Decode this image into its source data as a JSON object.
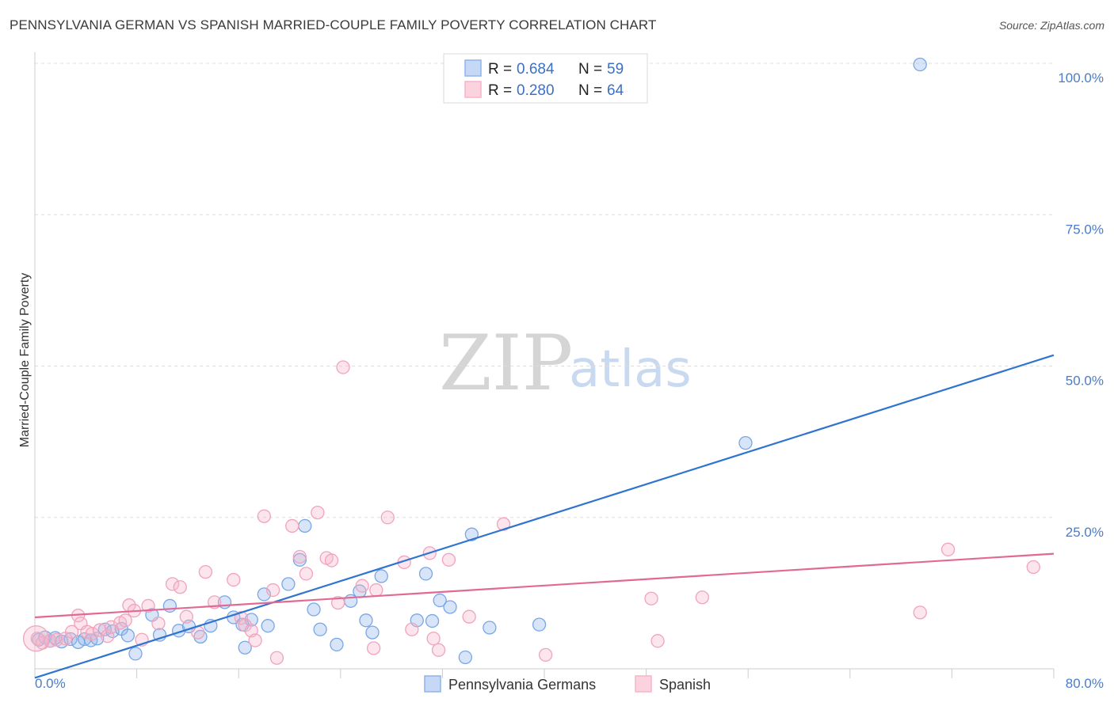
{
  "title": "PENNSYLVANIA GERMAN VS SPANISH MARRIED-COUPLE FAMILY POVERTY CORRELATION CHART",
  "source": "Source: ZipAtlas.com",
  "watermark": {
    "zip": "ZIP",
    "atlas": "atlas"
  },
  "chart_data": {
    "type": "scatter",
    "title": "PENNSYLVANIA GERMAN VS SPANISH MARRIED-COUPLE FAMILY POVERTY CORRELATION CHART",
    "xlabel": "",
    "ylabel": "Married-Couple Family Poverty",
    "xlim": [
      0,
      80
    ],
    "ylim": [
      0,
      100
    ],
    "x_tick_labels": {
      "min": "0.0%",
      "max": "80.0%"
    },
    "y_ticks": [
      25,
      50,
      75,
      100
    ],
    "y_tick_labels": [
      "25.0%",
      "50.0%",
      "75.0%",
      "100.0%"
    ],
    "legend_position": "top-center",
    "series": [
      {
        "name": "Pennsylvania Germans",
        "color": "#8fb4ec",
        "line_color": "#2f74d0",
        "r_label": "R =",
        "r": "0.684",
        "n_label": "N =",
        "n": "59",
        "trend": {
          "x0": 0,
          "y0": -1.5,
          "x1": 80,
          "y1": 51.8
        },
        "points": [
          [
            0.3,
            4.8
          ],
          [
            0.8,
            5.2
          ],
          [
            1.2,
            4.6
          ],
          [
            1.6,
            5.1
          ],
          [
            2.1,
            4.5
          ],
          [
            2.8,
            4.9
          ],
          [
            3.4,
            4.4
          ],
          [
            3.9,
            4.9
          ],
          [
            4.4,
            4.7
          ],
          [
            4.9,
            5.0
          ],
          [
            5.5,
            6.5
          ],
          [
            6.1,
            6.2
          ],
          [
            6.8,
            6.6
          ],
          [
            7.3,
            5.5
          ],
          [
            7.9,
            2.5
          ],
          [
            9.2,
            8.9
          ],
          [
            9.8,
            5.6
          ],
          [
            10.6,
            10.4
          ],
          [
            11.3,
            6.3
          ],
          [
            12.1,
            7.0
          ],
          [
            13.0,
            5.3
          ],
          [
            13.8,
            7.1
          ],
          [
            14.9,
            11.0
          ],
          [
            15.6,
            8.5
          ],
          [
            16.3,
            7.3
          ],
          [
            16.5,
            3.5
          ],
          [
            17.0,
            8.1
          ],
          [
            18.0,
            12.3
          ],
          [
            18.3,
            7.1
          ],
          [
            19.9,
            14.0
          ],
          [
            20.8,
            18.0
          ],
          [
            21.2,
            23.6
          ],
          [
            21.9,
            9.8
          ],
          [
            22.4,
            6.5
          ],
          [
            23.7,
            4.0
          ],
          [
            24.8,
            11.2
          ],
          [
            25.5,
            12.8
          ],
          [
            26.0,
            8.0
          ],
          [
            26.5,
            6.0
          ],
          [
            27.2,
            15.3
          ],
          [
            30.0,
            8.0
          ],
          [
            30.7,
            15.7
          ],
          [
            31.2,
            7.9
          ],
          [
            31.8,
            11.3
          ],
          [
            32.6,
            10.2
          ],
          [
            33.8,
            1.9
          ],
          [
            34.3,
            22.2
          ],
          [
            35.7,
            6.8
          ],
          [
            39.6,
            7.3
          ],
          [
            55.8,
            37.3
          ],
          [
            69.5,
            99.8
          ]
        ]
      },
      {
        "name": "Spanish",
        "color": "#f6b4c8",
        "line_color": "#e06a93",
        "r_label": "R =",
        "r": "0.280",
        "n_label": "N =",
        "n": "64",
        "trend": {
          "x0": 0,
          "y0": 8.5,
          "x1": 80,
          "y1": 19.0
        },
        "points": [
          [
            0.2,
            5.0
          ],
          [
            0.6,
            4.3
          ],
          [
            1.2,
            4.6
          ],
          [
            1.7,
            4.8
          ],
          [
            2.4,
            5.0
          ],
          [
            2.9,
            6.1
          ],
          [
            3.4,
            8.8
          ],
          [
            3.6,
            7.5
          ],
          [
            4.1,
            6.1
          ],
          [
            4.5,
            5.8
          ],
          [
            5.1,
            6.4
          ],
          [
            5.7,
            5.4
          ],
          [
            6.0,
            6.9
          ],
          [
            6.7,
            7.6
          ],
          [
            7.1,
            8.0
          ],
          [
            7.4,
            10.5
          ],
          [
            7.8,
            9.6
          ],
          [
            8.4,
            4.8
          ],
          [
            8.9,
            10.4
          ],
          [
            9.7,
            7.5
          ],
          [
            10.8,
            14.0
          ],
          [
            11.4,
            13.5
          ],
          [
            11.9,
            8.6
          ],
          [
            12.8,
            6.0
          ],
          [
            13.4,
            16.0
          ],
          [
            14.1,
            11.0
          ],
          [
            15.6,
            14.7
          ],
          [
            16.2,
            8.4
          ],
          [
            16.5,
            7.2
          ],
          [
            17.0,
            6.3
          ],
          [
            17.3,
            4.7
          ],
          [
            18.0,
            25.2
          ],
          [
            18.7,
            13.0
          ],
          [
            19.0,
            1.8
          ],
          [
            20.2,
            23.6
          ],
          [
            20.8,
            18.5
          ],
          [
            21.3,
            15.7
          ],
          [
            22.2,
            25.8
          ],
          [
            22.9,
            18.3
          ],
          [
            23.3,
            17.9
          ],
          [
            23.8,
            10.9
          ],
          [
            24.2,
            49.8
          ],
          [
            25.7,
            13.7
          ],
          [
            26.6,
            3.4
          ],
          [
            26.8,
            13.0
          ],
          [
            27.7,
            25.0
          ],
          [
            29.0,
            17.6
          ],
          [
            29.6,
            6.5
          ],
          [
            31.0,
            19.1
          ],
          [
            31.3,
            5.0
          ],
          [
            31.7,
            3.1
          ],
          [
            32.5,
            18.0
          ],
          [
            34.1,
            8.6
          ],
          [
            36.8,
            23.9
          ],
          [
            40.1,
            2.3
          ],
          [
            48.4,
            11.6
          ],
          [
            48.9,
            4.6
          ],
          [
            52.4,
            11.8
          ],
          [
            69.5,
            9.3
          ],
          [
            71.7,
            19.7
          ],
          [
            78.4,
            16.8
          ]
        ]
      }
    ]
  }
}
